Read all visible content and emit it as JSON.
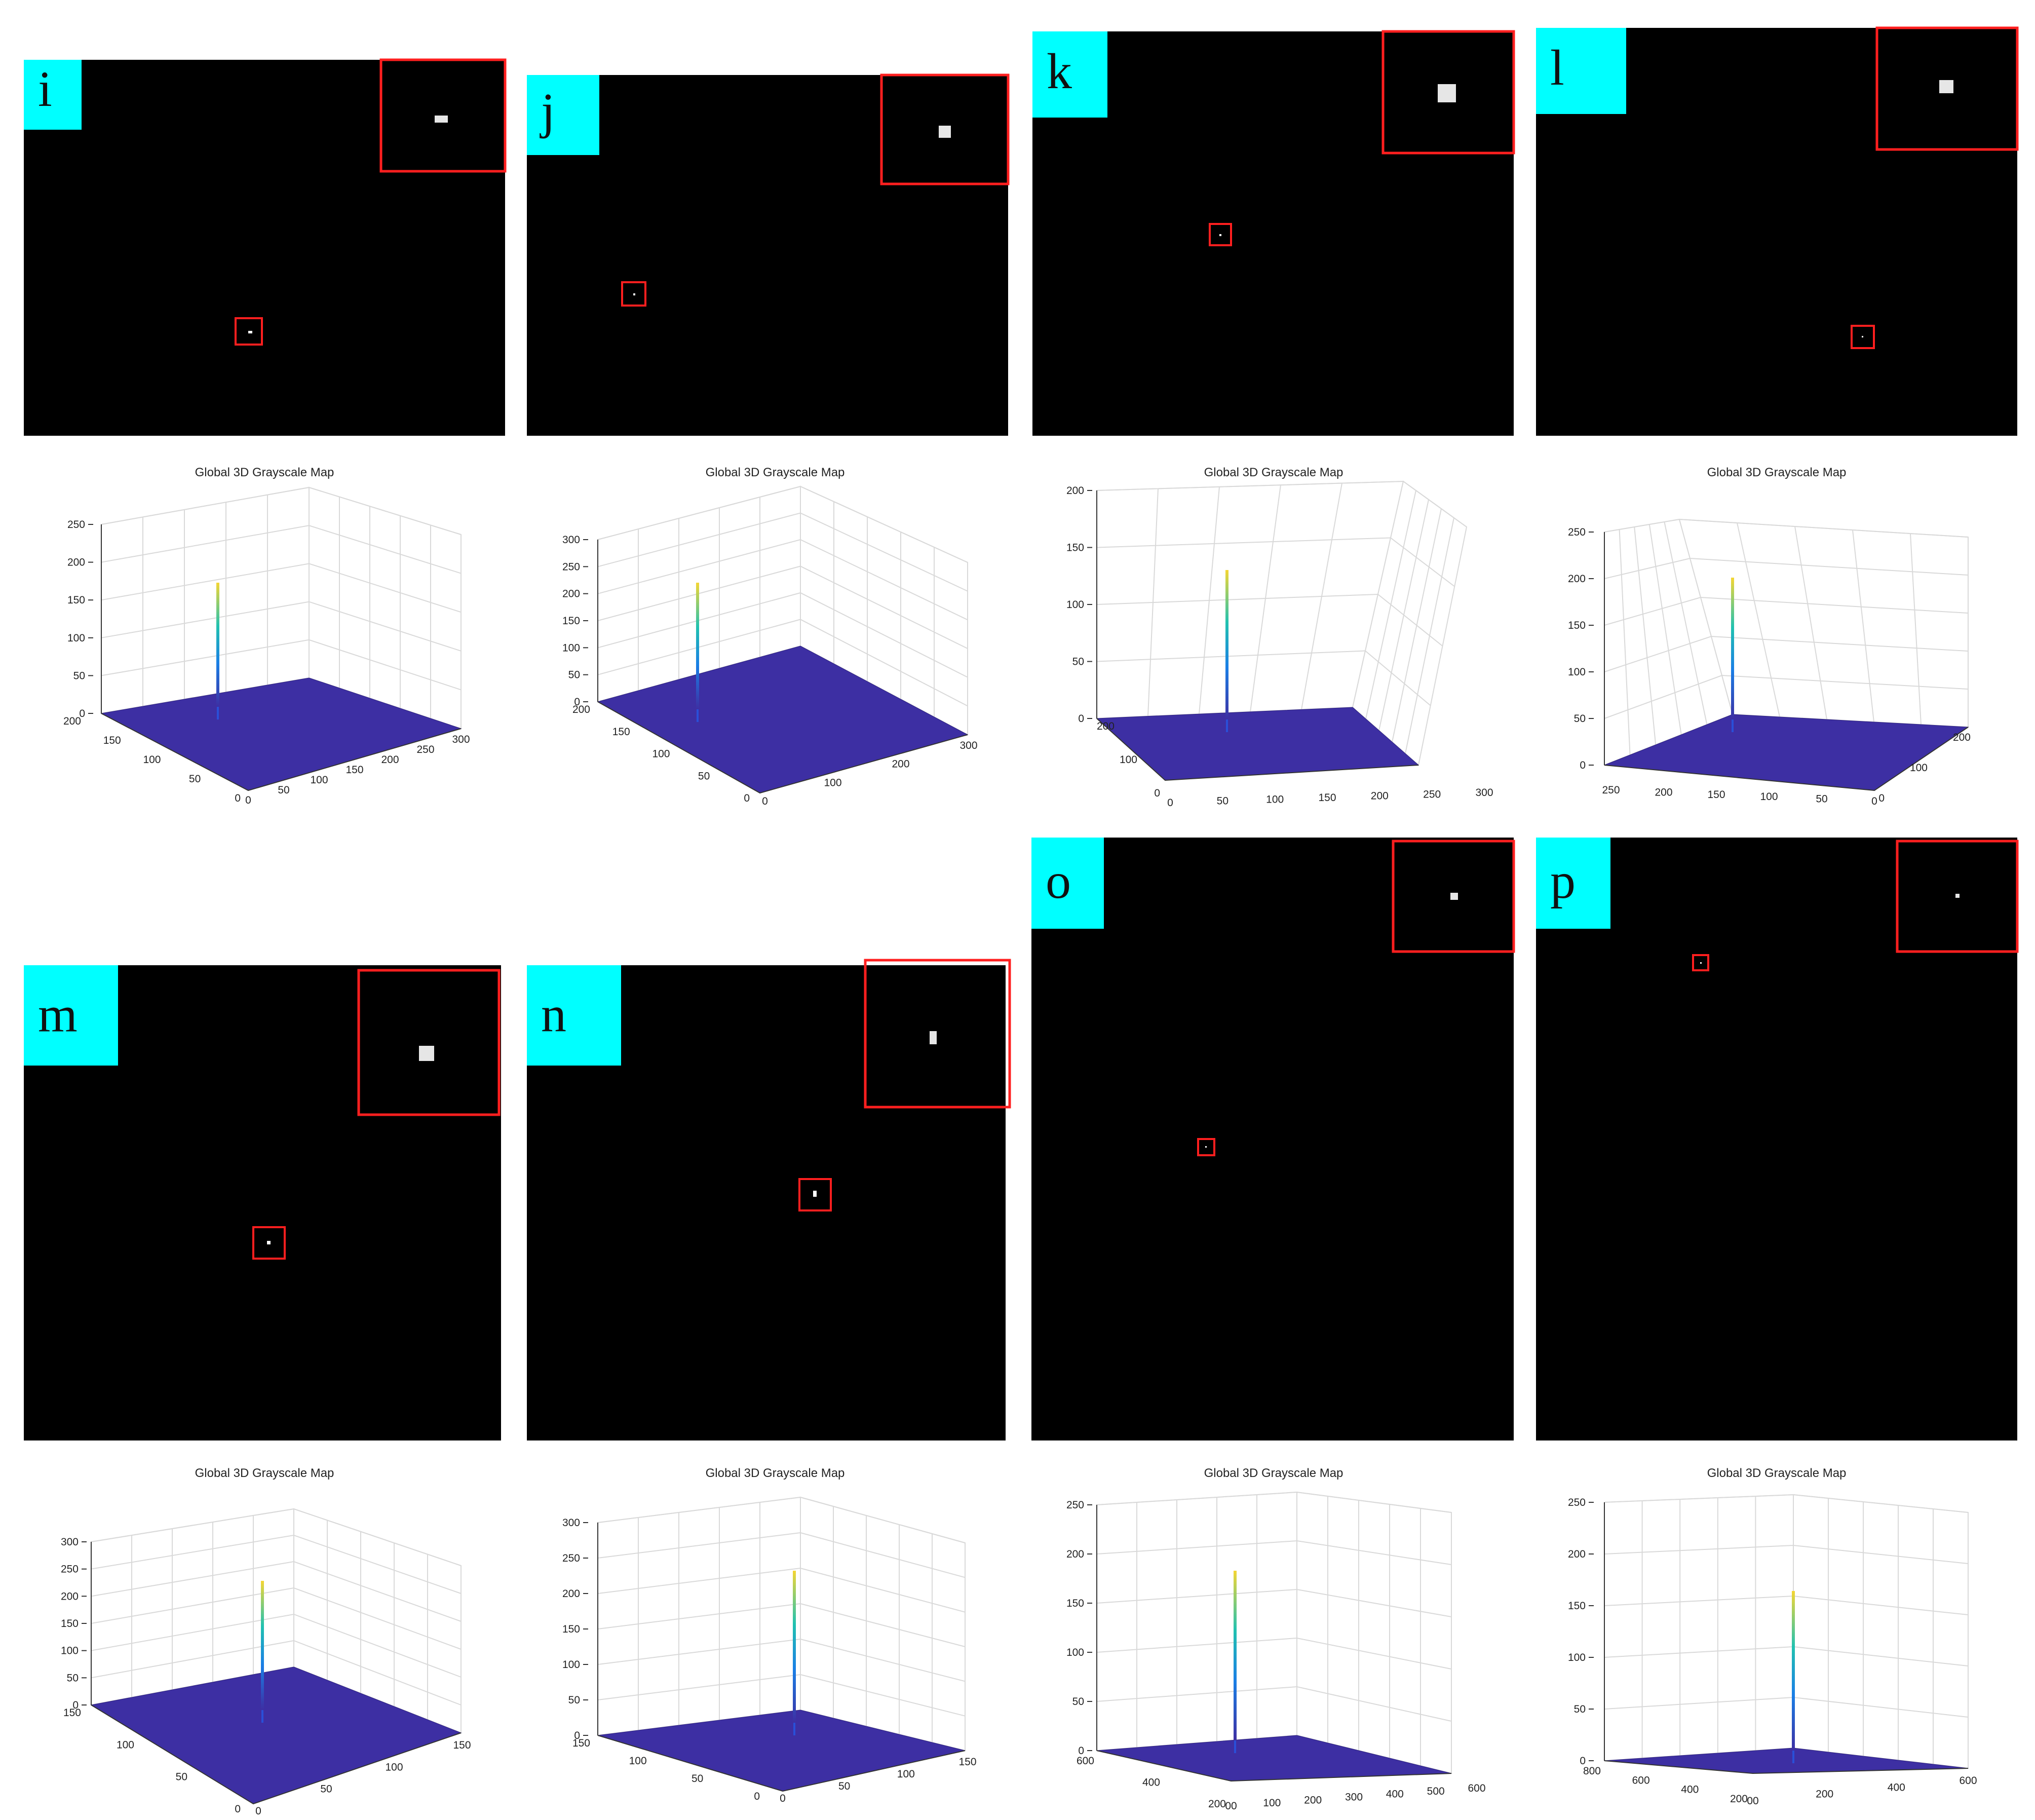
{
  "colors": {
    "panel_bg": "#000000",
    "marker": "#ff1f1f",
    "label_bg": "#00ffff",
    "surface": "#3d2fa3",
    "grid": "#d9d9d9",
    "axis": "#333333"
  },
  "panels": [
    {
      "letter": "i",
      "plot_title": "Global 3D Grayscale Map",
      "z_ticks": [
        "0",
        "50",
        "100",
        "150",
        "200",
        "250"
      ],
      "x_ticks": [
        "0",
        "50",
        "100",
        "150",
        "200",
        "250",
        "300"
      ],
      "y_ticks": [
        "200",
        "150",
        "100",
        "50",
        "0"
      ]
    },
    {
      "letter": "j",
      "plot_title": "Global 3D Grayscale Map",
      "z_ticks": [
        "0",
        "50",
        "100",
        "150",
        "200",
        "250",
        "300"
      ],
      "x_ticks": [
        "0",
        "100",
        "200",
        "300"
      ],
      "y_ticks": [
        "200",
        "150",
        "100",
        "50",
        "0"
      ]
    },
    {
      "letter": "k",
      "plot_title": "Global 3D Grayscale Map",
      "z_ticks": [
        "0",
        "50",
        "100",
        "150",
        "200"
      ],
      "x_ticks": [
        "0",
        "50",
        "100",
        "150",
        "200",
        "250",
        "300"
      ],
      "y_ticks": [
        "200",
        "100",
        "0"
      ]
    },
    {
      "letter": "l",
      "plot_title": "Global 3D Grayscale Map",
      "z_ticks": [
        "0",
        "50",
        "100",
        "150",
        "200",
        "250"
      ],
      "x_ticks": [
        "250",
        "200",
        "150",
        "100",
        "50",
        "0"
      ],
      "y_ticks": [
        "0",
        "100",
        "200"
      ]
    },
    {
      "letter": "m",
      "plot_title": "Global 3D Grayscale Map",
      "z_ticks": [
        "0",
        "50",
        "100",
        "150",
        "200",
        "250",
        "300"
      ],
      "x_ticks": [
        "0",
        "50",
        "100",
        "150"
      ],
      "y_ticks": [
        "150",
        "100",
        "50",
        "0"
      ]
    },
    {
      "letter": "n",
      "plot_title": "Global 3D Grayscale Map",
      "z_ticks": [
        "0",
        "50",
        "100",
        "150",
        "200",
        "250",
        "300"
      ],
      "x_ticks": [
        "0",
        "50",
        "100",
        "150"
      ],
      "y_ticks": [
        "150",
        "100",
        "50",
        "0"
      ]
    },
    {
      "letter": "o",
      "plot_title": "Global 3D Grayscale Map",
      "z_ticks": [
        "0",
        "50",
        "100",
        "150",
        "200",
        "250"
      ],
      "x_ticks": [
        "00",
        "100",
        "200",
        "300",
        "400",
        "500",
        "600"
      ],
      "y_ticks": [
        "600",
        "400",
        "200"
      ]
    },
    {
      "letter": "p",
      "plot_title": "Global 3D Grayscale Map",
      "z_ticks": [
        "0",
        "50",
        "100",
        "150",
        "200",
        "250"
      ],
      "x_ticks": [
        "00",
        "200",
        "400",
        "600"
      ],
      "y_ticks": [
        "800",
        "600",
        "400",
        "200"
      ]
    }
  ]
}
